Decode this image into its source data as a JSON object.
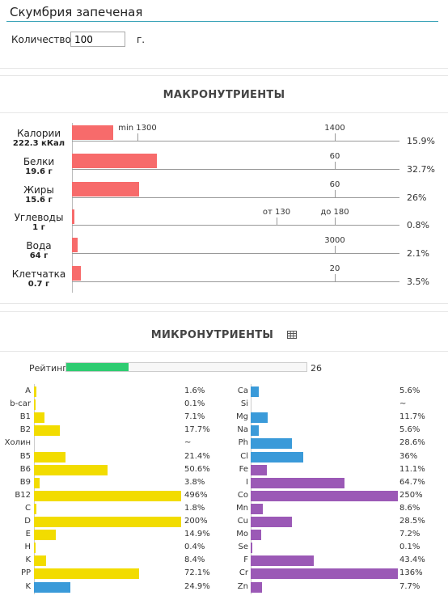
{
  "header": {
    "title": "Скумбрия запеченая",
    "qty_label": "Количество",
    "qty_value": "100",
    "qty_unit": "г."
  },
  "macro": {
    "title": "МАКРОНУТРИЕНТЫ",
    "rows": [
      {
        "name": "Калории",
        "amount": "222.3 кКал",
        "pct": "15.9%",
        "pctv": 15.9,
        "ticks": [
          "min 1300",
          "1400"
        ]
      },
      {
        "name": "Белки",
        "amount": "19.6 г",
        "pct": "32.7%",
        "pctv": 32.7,
        "ticks": [
          "60"
        ]
      },
      {
        "name": "Жиры",
        "amount": "15.6 г",
        "pct": "26%",
        "pctv": 26,
        "ticks": [
          "60"
        ]
      },
      {
        "name": "Углеводы",
        "amount": "1 г",
        "pct": "0.8%",
        "pctv": 0.8,
        "ticks": [
          "от 130",
          "до 180"
        ]
      },
      {
        "name": "Вода",
        "amount": "64 г",
        "pct": "2.1%",
        "pctv": 2.1,
        "ticks": [
          "3000"
        ]
      },
      {
        "name": "Клетчатка",
        "amount": "0.7 г",
        "pct": "3.5%",
        "pctv": 3.5,
        "ticks": [
          "20"
        ]
      }
    ]
  },
  "micro": {
    "title": "МИКРОНУТРИЕНТЫ",
    "rating_label": "Рейтинг",
    "rating_value": "26",
    "rating_fill": 26,
    "colors": {
      "macro": "#f76b6b",
      "vitamin": "#f2dc00",
      "mineral": "#3a9ad9",
      "trace": "#9b59b6",
      "rating": "#2ecc71"
    },
    "left": [
      {
        "name": "A",
        "pct": "1.6%",
        "v": 1.6,
        "c": "vitamin"
      },
      {
        "name": "b-car",
        "pct": "0.1%",
        "v": 0.1,
        "c": "vitamin"
      },
      {
        "name": "B1",
        "pct": "7.1%",
        "v": 7.1,
        "c": "vitamin"
      },
      {
        "name": "B2",
        "pct": "17.7%",
        "v": 17.7,
        "c": "vitamin"
      },
      {
        "name": "Холин",
        "pct": "~",
        "v": 0,
        "c": "vitamin"
      },
      {
        "name": "B5",
        "pct": "21.4%",
        "v": 21.4,
        "c": "vitamin"
      },
      {
        "name": "B6",
        "pct": "50.6%",
        "v": 50.6,
        "c": "vitamin"
      },
      {
        "name": "B9",
        "pct": "3.8%",
        "v": 3.8,
        "c": "vitamin"
      },
      {
        "name": "B12",
        "pct": "496%",
        "v": 496,
        "c": "vitamin"
      },
      {
        "name": "C",
        "pct": "1.8%",
        "v": 1.8,
        "c": "vitamin"
      },
      {
        "name": "D",
        "pct": "200%",
        "v": 200,
        "c": "vitamin"
      },
      {
        "name": "E",
        "pct": "14.9%",
        "v": 14.9,
        "c": "vitamin"
      },
      {
        "name": "H",
        "pct": "0.4%",
        "v": 0.4,
        "c": "vitamin"
      },
      {
        "name": "K",
        "pct": "8.4%",
        "v": 8.4,
        "c": "vitamin"
      },
      {
        "name": "PP",
        "pct": "72.1%",
        "v": 72.1,
        "c": "vitamin"
      },
      {
        "name": "K",
        "pct": "24.9%",
        "v": 24.9,
        "c": "mineral"
      }
    ],
    "right": [
      {
        "name": "Ca",
        "pct": "5.6%",
        "v": 5.6,
        "c": "mineral"
      },
      {
        "name": "Si",
        "pct": "~",
        "v": 0,
        "c": "mineral"
      },
      {
        "name": "Mg",
        "pct": "11.7%",
        "v": 11.7,
        "c": "mineral"
      },
      {
        "name": "Na",
        "pct": "5.6%",
        "v": 5.6,
        "c": "mineral"
      },
      {
        "name": "Ph",
        "pct": "28.6%",
        "v": 28.6,
        "c": "mineral"
      },
      {
        "name": "Cl",
        "pct": "36%",
        "v": 36,
        "c": "mineral"
      },
      {
        "name": "Fe",
        "pct": "11.1%",
        "v": 11.1,
        "c": "trace"
      },
      {
        "name": "I",
        "pct": "64.7%",
        "v": 64.7,
        "c": "trace"
      },
      {
        "name": "Co",
        "pct": "250%",
        "v": 250,
        "c": "trace"
      },
      {
        "name": "Mn",
        "pct": "8.6%",
        "v": 8.6,
        "c": "trace"
      },
      {
        "name": "Cu",
        "pct": "28.5%",
        "v": 28.5,
        "c": "trace"
      },
      {
        "name": "Mo",
        "pct": "7.2%",
        "v": 7.2,
        "c": "trace"
      },
      {
        "name": "Se",
        "pct": "0.1%",
        "v": 0.1,
        "c": "trace"
      },
      {
        "name": "F",
        "pct": "43.4%",
        "v": 43.4,
        "c": "trace"
      },
      {
        "name": "Cr",
        "pct": "136%",
        "v": 136,
        "c": "trace"
      },
      {
        "name": "Zn",
        "pct": "7.7%",
        "v": 7.7,
        "c": "trace"
      }
    ]
  }
}
